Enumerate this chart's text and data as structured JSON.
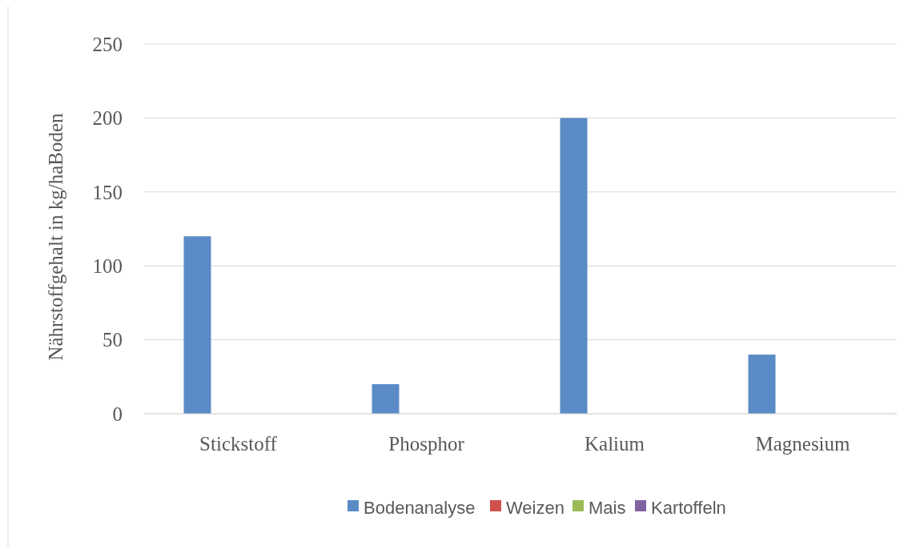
{
  "chart_data": {
    "type": "bar",
    "ylabel": "Nährstoffgehalt in kg/haBoden",
    "categories": [
      "Stickstoff",
      "Phosphor",
      "Kalium",
      "Magnesium"
    ],
    "series": [
      {
        "name": "Bodenanalyse",
        "color": "#5b8bc6",
        "values": [
          120,
          20,
          200,
          40
        ]
      },
      {
        "name": "Weizen",
        "color": "#d0504d",
        "values": [
          0,
          0,
          0,
          0
        ]
      },
      {
        "name": "Mais",
        "color": "#9bbb59",
        "values": [
          0,
          0,
          0,
          0
        ]
      },
      {
        "name": "Kartoffeln",
        "color": "#8064a2",
        "values": [
          0,
          0,
          0,
          0
        ]
      }
    ],
    "ylim": [
      0,
      250
    ],
    "yticks": [
      0,
      50,
      100,
      150,
      200,
      250
    ],
    "grid": "y",
    "legend": "bottom"
  }
}
